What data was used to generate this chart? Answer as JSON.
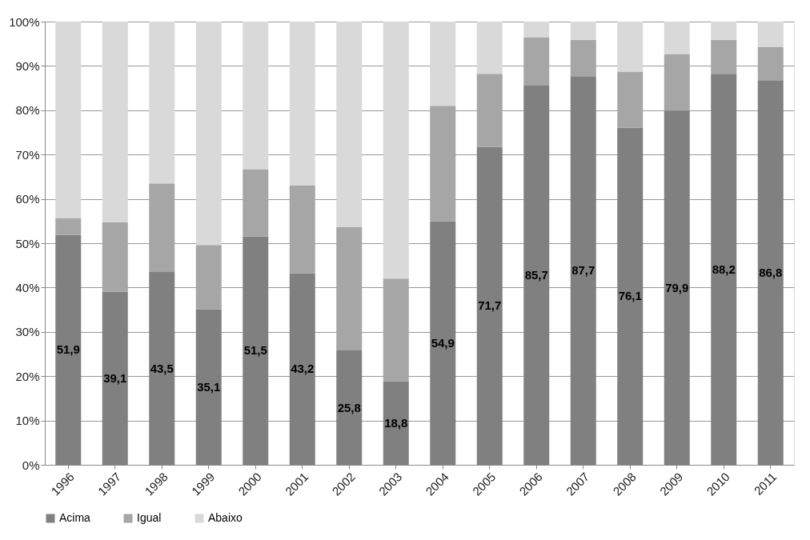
{
  "chart_data": {
    "type": "bar",
    "stacked": true,
    "categories": [
      "1996",
      "1997",
      "1998",
      "1999",
      "2000",
      "2001",
      "2002",
      "2003",
      "2004",
      "2005",
      "2006",
      "2007",
      "2008",
      "2009",
      "2010",
      "2011"
    ],
    "series": [
      {
        "name": "Acima",
        "color": "#808080",
        "values": [
          51.9,
          39.1,
          43.5,
          35.1,
          51.5,
          43.2,
          25.8,
          18.8,
          54.9,
          71.7,
          85.7,
          87.7,
          76.1,
          79.9,
          88.2,
          86.8
        ],
        "value_labels": [
          "51,9",
          "39,1",
          "43,5",
          "35,1",
          "51,5",
          "43,2",
          "25,8",
          "18,8",
          "54,9",
          "71,7",
          "85,7",
          "87,7",
          "76,1",
          "79,9",
          "88,2",
          "86,8"
        ]
      },
      {
        "name": "Igual",
        "color": "#a6a6a6",
        "values": [
          3.8,
          15.6,
          20.0,
          14.5,
          15.2,
          19.8,
          27.9,
          23.2,
          26.1,
          16.5,
          10.8,
          8.2,
          12.6,
          12.8,
          7.7,
          7.5
        ]
      },
      {
        "name": "Abaixo",
        "color": "#d9d9d9",
        "values": [
          44.3,
          45.3,
          36.5,
          50.4,
          33.3,
          37.0,
          46.3,
          58.0,
          19.0,
          11.8,
          3.5,
          4.1,
          11.3,
          7.3,
          4.1,
          5.7
        ]
      }
    ],
    "ylim": [
      0,
      100
    ],
    "yticks": [
      {
        "value": 0,
        "label": "0%"
      },
      {
        "value": 10,
        "label": "10%"
      },
      {
        "value": 20,
        "label": "20%"
      },
      {
        "value": 30,
        "label": "30%"
      },
      {
        "value": 40,
        "label": "40%"
      },
      {
        "value": 50,
        "label": "50%"
      },
      {
        "value": 60,
        "label": "60%"
      },
      {
        "value": 70,
        "label": "70%"
      },
      {
        "value": 80,
        "label": "80%"
      },
      {
        "value": 90,
        "label": "90%"
      },
      {
        "value": 100,
        "label": "100%"
      }
    ],
    "grid": "y",
    "legend": "bottom"
  }
}
